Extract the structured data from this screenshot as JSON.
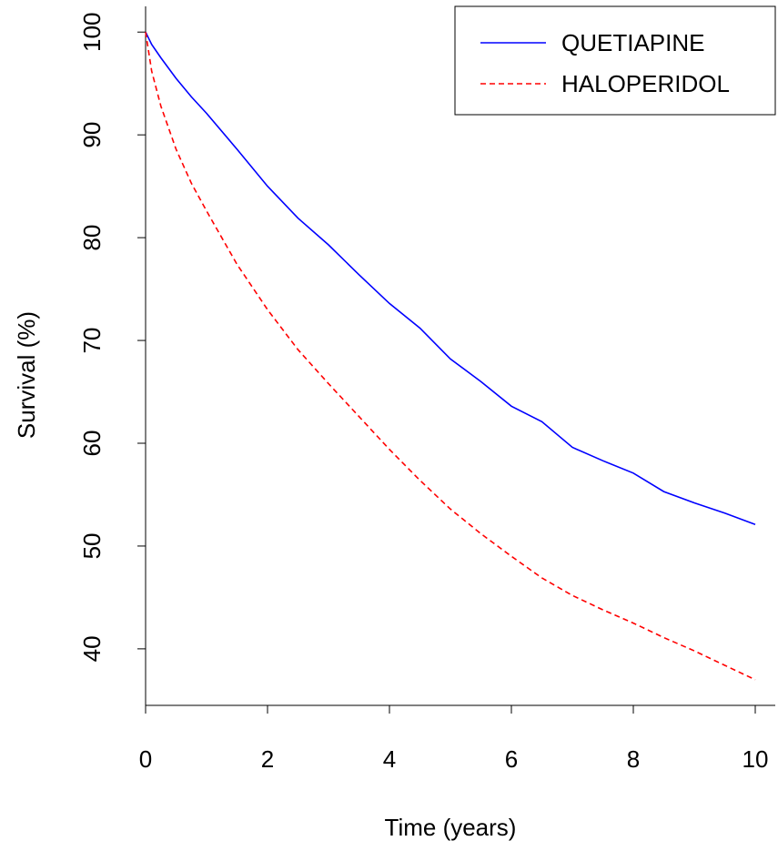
{
  "chart_data": {
    "type": "line",
    "xlabel": "Time (years)",
    "ylabel": "Survival (%)",
    "xlim": [
      0,
      10
    ],
    "ylim": [
      34.5,
      102.5
    ],
    "x_ticks": [
      0,
      2,
      4,
      6,
      8,
      10
    ],
    "y_ticks": [
      40,
      50,
      60,
      70,
      80,
      90,
      100
    ],
    "x_tick_labels": [
      "0",
      "2",
      "4",
      "6",
      "8",
      "10"
    ],
    "y_tick_labels": [
      "40",
      "50",
      "60",
      "70",
      "80",
      "90",
      "100"
    ],
    "grid": false,
    "legend_position": "top-right",
    "series": [
      {
        "name": "QUETIAPINE",
        "color": "#0000ff",
        "line_style": "solid",
        "x": [
          0,
          0.1,
          0.25,
          0.5,
          0.75,
          1.0,
          1.5,
          2.0,
          2.5,
          3.0,
          3.5,
          4.0,
          4.5,
          5.0,
          5.5,
          6.0,
          6.5,
          7.0,
          7.5,
          8.0,
          8.5,
          9.0,
          9.5,
          10.0
        ],
        "values": [
          100,
          98.8,
          97.5,
          95.5,
          93.7,
          92.1,
          88.6,
          85.0,
          81.9,
          79.3,
          76.4,
          73.6,
          71.2,
          68.2,
          66.0,
          63.6,
          62.1,
          59.6,
          58.3,
          57.1,
          55.3,
          54.2,
          53.2,
          52.1
        ]
      },
      {
        "name": "HALOPERIDOL",
        "color": "#ff0000",
        "line_style": "dashed",
        "x": [
          0,
          0.1,
          0.25,
          0.5,
          0.75,
          1.0,
          1.5,
          2.0,
          2.5,
          3.0,
          3.5,
          4.0,
          4.5,
          5.0,
          5.5,
          6.0,
          6.5,
          7.0,
          7.5,
          8.0,
          8.5,
          9.0,
          9.5,
          10.0
        ],
        "values": [
          100,
          96.2,
          92.8,
          88.6,
          85.3,
          82.6,
          77.4,
          73.0,
          69.1,
          65.8,
          62.6,
          59.4,
          56.4,
          53.6,
          51.2,
          49.0,
          46.9,
          45.2,
          43.8,
          42.5,
          41.1,
          39.8,
          38.4,
          37.0
        ]
      }
    ]
  }
}
